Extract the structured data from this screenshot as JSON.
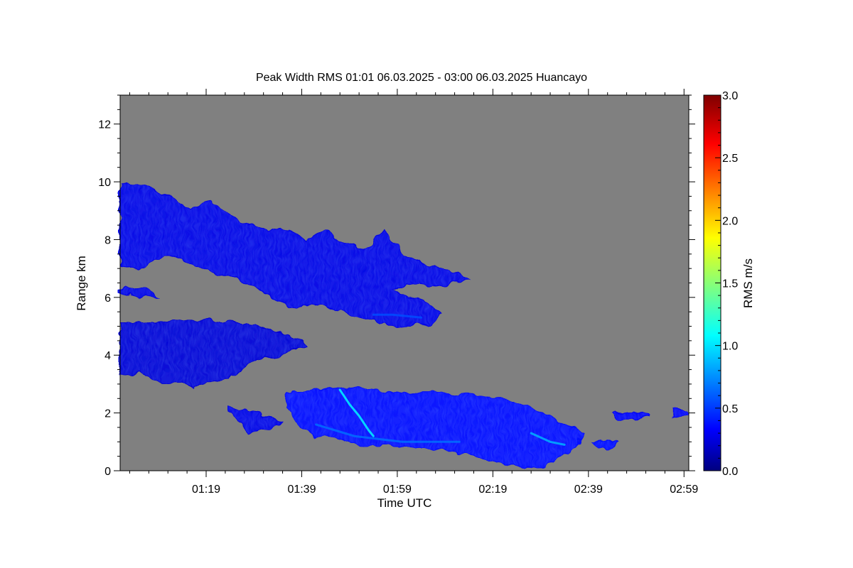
{
  "chart_data": {
    "type": "heatmap",
    "title": "Peak Width RMS   01:01 06.03.2025 - 03:00 06.03.2025 Huancayo",
    "xlabel": "Time UTC",
    "ylabel": "Range km",
    "colorbar_label": "RMS m/s",
    "xlim": [
      "01:01",
      "03:00"
    ],
    "ylim": [
      0,
      13
    ],
    "clim": [
      0.0,
      3.0
    ],
    "colormap": "jet",
    "background_color": "#808080",
    "x_ticks": [
      "01:19",
      "01:39",
      "01:59",
      "02:19",
      "02:39",
      "02:59"
    ],
    "y_ticks": [
      "0",
      "2",
      "4",
      "6",
      "8",
      "10",
      "12"
    ],
    "colorbar_ticks": [
      "0.0",
      "0.5",
      "1.0",
      "1.5",
      "2.0",
      "2.5",
      "3.0"
    ],
    "regions": [
      {
        "name": "upper cloud layer",
        "outline": [
          [
            "01:01",
            10.0
          ],
          [
            "01:06",
            9.9
          ],
          [
            "01:11",
            9.5
          ],
          [
            "01:16",
            9.0
          ],
          [
            "01:20",
            9.3
          ],
          [
            "01:24",
            8.9
          ],
          [
            "01:28",
            8.5
          ],
          [
            "01:32",
            8.3
          ],
          [
            "01:36",
            8.4
          ],
          [
            "01:40",
            8.0
          ],
          [
            "01:44",
            8.3
          ],
          [
            "01:48",
            7.9
          ],
          [
            "01:52",
            7.6
          ],
          [
            "01:56",
            8.3
          ],
          [
            "02:00",
            7.5
          ],
          [
            "02:04",
            7.2
          ],
          [
            "02:08",
            7.0
          ],
          [
            "02:12",
            6.8
          ],
          [
            "02:14",
            6.6
          ],
          [
            "02:10",
            6.5
          ],
          [
            "02:06",
            6.4
          ],
          [
            "02:01",
            6.5
          ],
          [
            "01:58",
            6.2
          ],
          [
            "02:02",
            6.0
          ],
          [
            "02:06",
            5.7
          ],
          [
            "02:08",
            5.4
          ],
          [
            "02:06",
            5.1
          ],
          [
            "02:00",
            5.0
          ],
          [
            "01:54",
            5.2
          ],
          [
            "01:48",
            5.5
          ],
          [
            "01:42",
            5.8
          ],
          [
            "01:38",
            5.6
          ],
          [
            "01:34",
            5.9
          ],
          [
            "01:30",
            6.3
          ],
          [
            "01:26",
            6.6
          ],
          [
            "01:22",
            6.8
          ],
          [
            "01:18",
            7.0
          ],
          [
            "01:14",
            7.3
          ],
          [
            "01:10",
            7.5
          ],
          [
            "01:05",
            7.0
          ],
          [
            "01:01",
            7.1
          ]
        ],
        "rms_typical": 0.3
      },
      {
        "name": "middle cloud layer",
        "outline": [
          [
            "01:01",
            5.1
          ],
          [
            "01:08",
            5.1
          ],
          [
            "01:14",
            5.2
          ],
          [
            "01:20",
            5.2
          ],
          [
            "01:26",
            5.1
          ],
          [
            "01:30",
            5.0
          ],
          [
            "01:34",
            4.8
          ],
          [
            "01:38",
            4.6
          ],
          [
            "01:40",
            4.3
          ],
          [
            "01:36",
            4.1
          ],
          [
            "01:30",
            3.8
          ],
          [
            "01:26",
            3.6
          ],
          [
            "01:24",
            3.2
          ],
          [
            "01:20",
            3.1
          ],
          [
            "01:16",
            2.9
          ],
          [
            "01:12",
            3.1
          ],
          [
            "01:08",
            3.1
          ],
          [
            "01:05",
            3.4
          ],
          [
            "01:01",
            3.3
          ]
        ],
        "rms_typical": 0.25
      },
      {
        "name": "lower cloud layer",
        "outline": [
          [
            "01:36",
            2.7
          ],
          [
            "01:44",
            2.8
          ],
          [
            "01:50",
            2.9
          ],
          [
            "01:58",
            2.7
          ],
          [
            "02:06",
            2.7
          ],
          [
            "02:14",
            2.6
          ],
          [
            "02:20",
            2.6
          ],
          [
            "02:24",
            2.3
          ],
          [
            "02:28",
            2.1
          ],
          [
            "02:34",
            1.6
          ],
          [
            "02:38",
            1.3
          ],
          [
            "02:36",
            0.8
          ],
          [
            "02:30",
            0.2
          ],
          [
            "02:22",
            0.2
          ],
          [
            "02:14",
            0.6
          ],
          [
            "02:06",
            0.8
          ],
          [
            "01:58",
            0.9
          ],
          [
            "01:52",
            0.9
          ],
          [
            "01:46",
            1.2
          ],
          [
            "01:42",
            1.2
          ],
          [
            "01:38",
            1.7
          ],
          [
            "01:36",
            2.2
          ]
        ],
        "rms_typical": 0.4
      },
      {
        "name": "lower fragments left",
        "outline": [
          [
            "01:24",
            2.2
          ],
          [
            "01:30",
            2.0
          ],
          [
            "01:35",
            1.7
          ],
          [
            "01:32",
            1.4
          ],
          [
            "01:28",
            1.3
          ],
          [
            "01:26",
            1.7
          ],
          [
            "01:24",
            2.0
          ]
        ],
        "rms_typical": 0.3
      },
      {
        "name": "thin layer 6.3 km",
        "outline": [
          [
            "01:01",
            6.3
          ],
          [
            "01:04",
            6.3
          ],
          [
            "01:07",
            6.2
          ],
          [
            "01:09",
            6.0
          ],
          [
            "01:06",
            6.0
          ],
          [
            "01:03",
            6.1
          ],
          [
            "01:01",
            6.2
          ]
        ],
        "rms_typical": 0.3
      },
      {
        "name": "fragment 02:41",
        "outline": [
          [
            "02:40",
            1.0
          ],
          [
            "02:43",
            1.1
          ],
          [
            "02:45",
            1.0
          ],
          [
            "02:44",
            0.8
          ],
          [
            "02:41",
            0.8
          ]
        ],
        "rms_typical": 0.4
      },
      {
        "name": "fragment 02:45",
        "outline": [
          [
            "02:44",
            2.0
          ],
          [
            "02:49",
            2.0
          ],
          [
            "02:52",
            1.9
          ],
          [
            "02:49",
            1.8
          ],
          [
            "02:45",
            1.8
          ]
        ],
        "rms_typical": 0.35
      },
      {
        "name": "fragment 02:59",
        "outline": [
          [
            "02:57",
            2.1
          ],
          [
            "03:00",
            2.1
          ],
          [
            "03:00",
            1.9
          ],
          [
            "02:57",
            1.9
          ]
        ],
        "rms_typical": 0.35
      }
    ],
    "streaks": [
      {
        "rms": 1.1,
        "path": [
          [
            "01:47",
            2.8
          ],
          [
            "01:49",
            2.3
          ],
          [
            "01:51",
            1.9
          ],
          [
            "01:53",
            1.4
          ],
          [
            "01:54",
            1.2
          ]
        ]
      },
      {
        "rms": 0.9,
        "path": [
          [
            "02:27",
            1.3
          ],
          [
            "02:31",
            1.0
          ],
          [
            "02:34",
            0.9
          ]
        ]
      },
      {
        "rms": 0.7,
        "path": [
          [
            "01:42",
            1.6
          ],
          [
            "01:50",
            1.2
          ],
          [
            "02:00",
            1.0
          ],
          [
            "02:12",
            1.0
          ]
        ]
      },
      {
        "rms": 0.6,
        "path": [
          [
            "01:54",
            5.4
          ],
          [
            "01:58",
            5.4
          ],
          [
            "02:04",
            5.3
          ]
        ]
      }
    ]
  }
}
